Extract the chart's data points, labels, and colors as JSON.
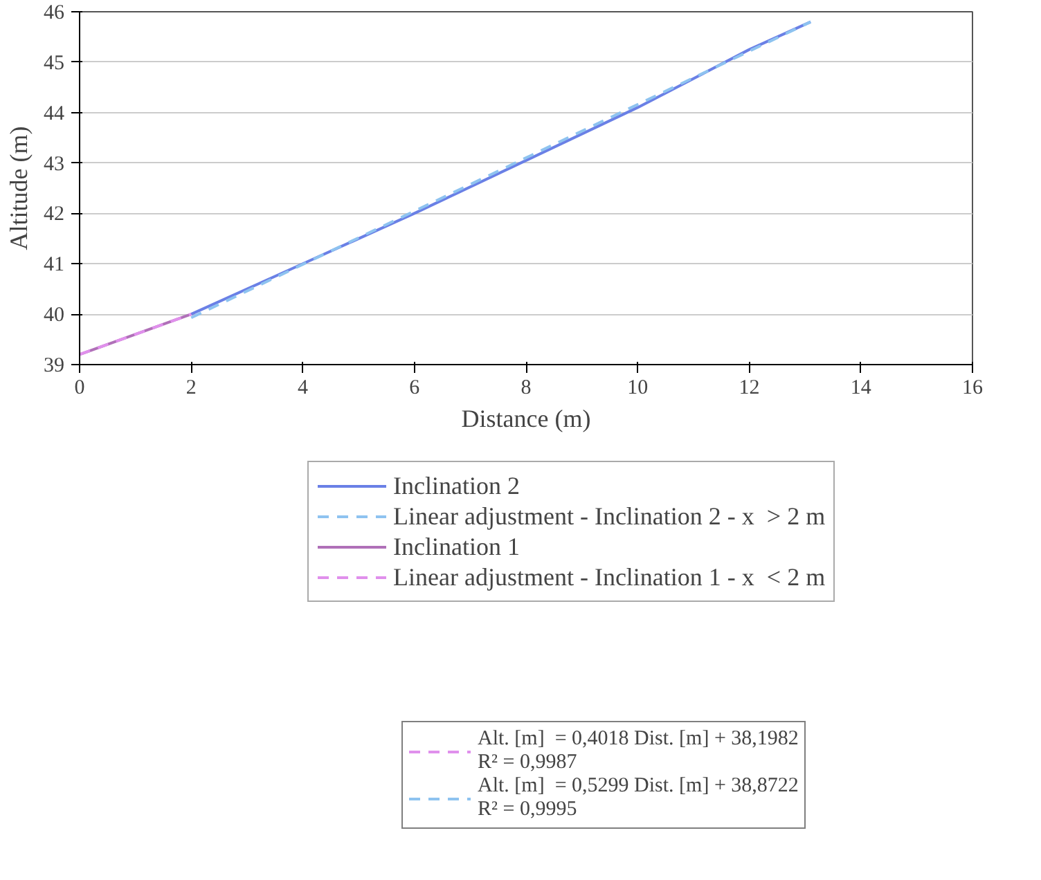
{
  "chart_data": {
    "type": "line",
    "xlabel": "Distance (m)",
    "ylabel": "Altitude (m)",
    "xlim": [
      0,
      16
    ],
    "xticks": [
      0,
      2,
      4,
      6,
      8,
      10,
      12,
      14,
      16
    ],
    "ylim": [
      39,
      46
    ],
    "yticks": [
      39,
      40,
      41,
      42,
      43,
      44,
      45,
      46
    ],
    "grid": "y",
    "legend": "bottom",
    "series": [
      {
        "name": "Inclination 2",
        "color": "#6a80e6",
        "line_style": "solid",
        "x": [
          2,
          4,
          6,
          8,
          10,
          12,
          13.1
        ],
        "values": [
          40.0,
          41.0,
          42.0,
          43.05,
          44.1,
          45.25,
          45.8
        ]
      },
      {
        "name": "Linear adjustment - Inclination 2 - x  > 2 m",
        "color": "#8ec3f0",
        "line_style": "dashed",
        "x": [
          2,
          13.1
        ],
        "values": [
          39.93,
          45.8
        ]
      },
      {
        "name": "Inclination 1",
        "color": "#b070b8",
        "line_style": "solid",
        "x": [
          0,
          2
        ],
        "values": [
          39.2,
          40.0
        ]
      },
      {
        "name": "Linear adjustment - Inclination 1 - x  < 2 m",
        "color": "#e090ec",
        "line_style": "dashed",
        "x": [
          0,
          2
        ],
        "values": [
          39.2,
          40.0
        ]
      }
    ],
    "annotations": [
      "Alt. [m]  = 0,4018 Dist. [m] + 38,1982\nR² = 0,9987",
      "Alt. [m]  = 0,5299 Dist. [m] + 38,8722\nR² = 0,9995"
    ]
  }
}
